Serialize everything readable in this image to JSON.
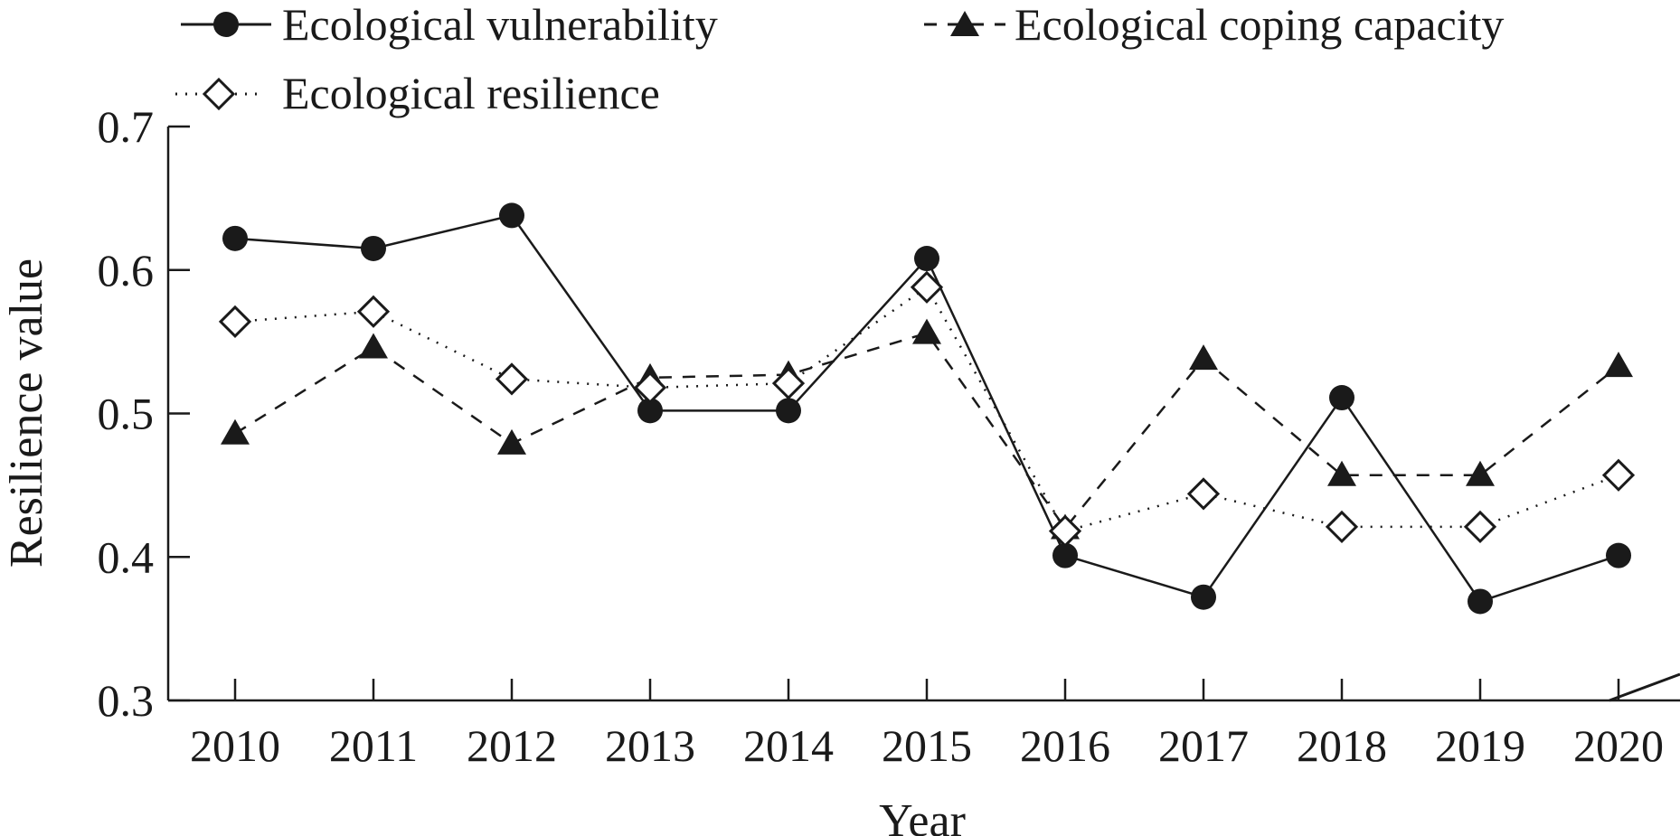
{
  "chart_data": {
    "type": "line",
    "xlabel": "Year",
    "ylabel": "Resilience value",
    "ylim": [
      0.3,
      0.7
    ],
    "yticks": [
      "0.3",
      "0.4",
      "0.5",
      "0.6",
      "0.7"
    ],
    "categories": [
      "2010",
      "2011",
      "2012",
      "2013",
      "2014",
      "2015",
      "2016",
      "2017",
      "2018",
      "2019",
      "2020"
    ],
    "legend_position": "top",
    "series": [
      {
        "name": "Ecological vulnerability",
        "line_style": "solid",
        "marker": "filled-circle",
        "values": [
          0.622,
          0.615,
          0.638,
          0.502,
          0.502,
          0.608,
          0.401,
          0.372,
          0.511,
          0.369,
          0.401
        ]
      },
      {
        "name": "Ecological coping capacity",
        "line_style": "dashed",
        "marker": "filled-triangle",
        "values": [
          0.486,
          0.546,
          0.479,
          0.525,
          0.527,
          0.556,
          0.42,
          0.538,
          0.457,
          0.457,
          0.533
        ]
      },
      {
        "name": "Ecological resilience",
        "line_style": "dotted",
        "marker": "open-diamond",
        "values": [
          0.564,
          0.571,
          0.524,
          0.518,
          0.521,
          0.588,
          0.418,
          0.444,
          0.421,
          0.421,
          0.457
        ]
      }
    ]
  }
}
